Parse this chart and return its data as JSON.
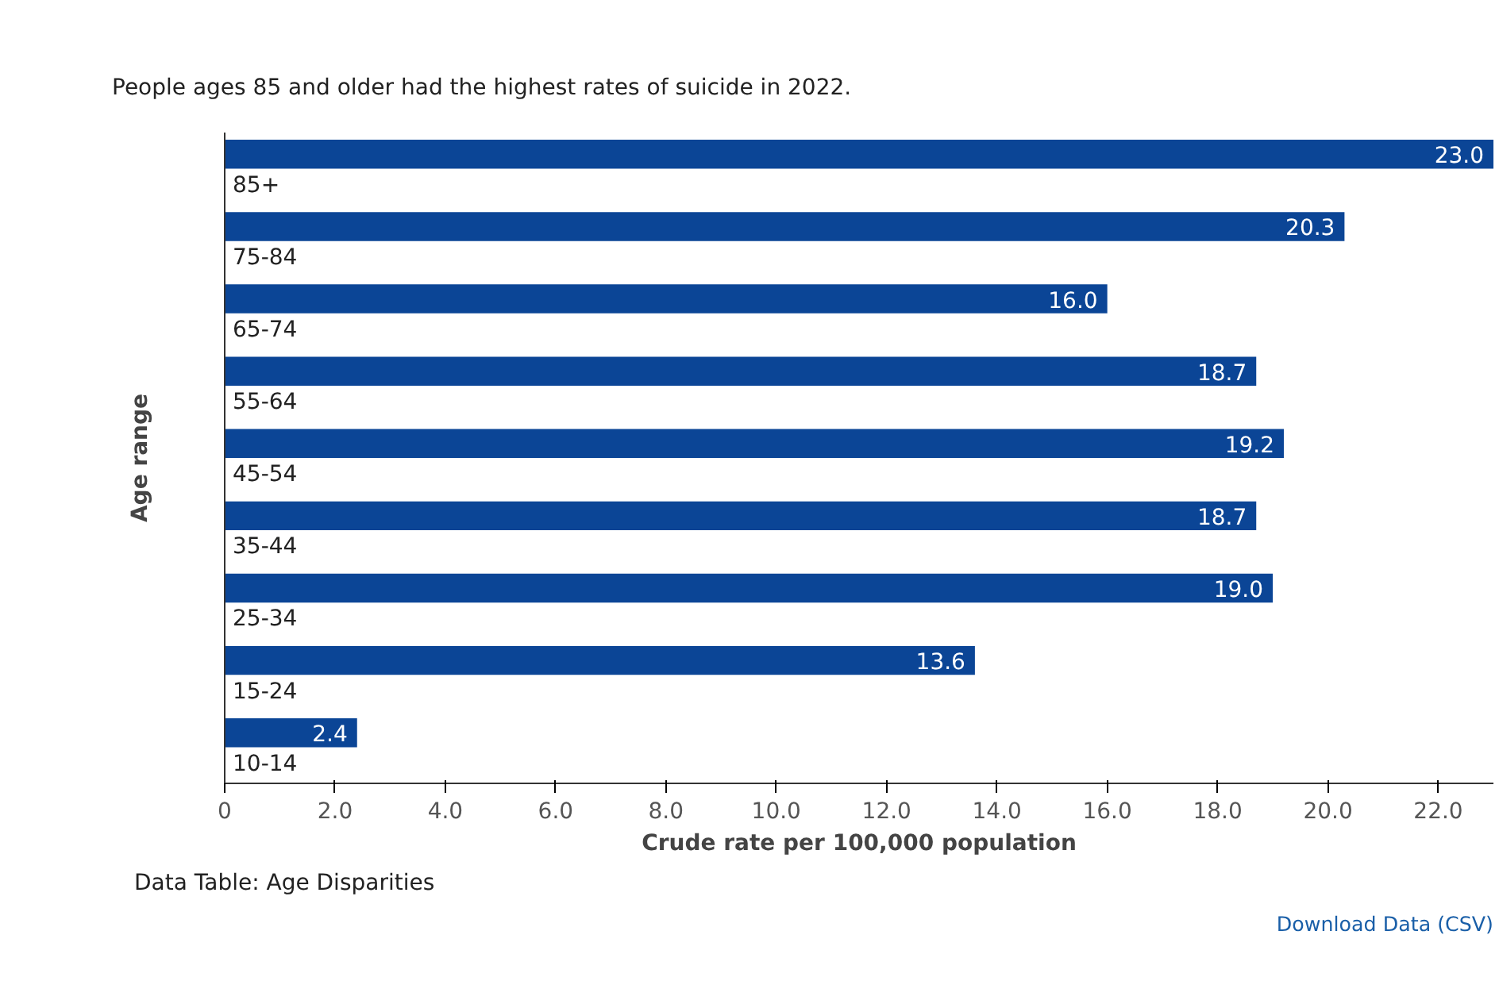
{
  "chart_data": {
    "type": "bar",
    "orientation": "horizontal",
    "title": "People ages 85 and older had the highest rates of suicide in 2022.",
    "categories": [
      "85+",
      "75-84",
      "65-74",
      "55-64",
      "45-54",
      "35-44",
      "25-34",
      "15-24",
      "10-14"
    ],
    "values": [
      23.0,
      20.3,
      16.0,
      18.7,
      19.2,
      18.7,
      19.0,
      13.6,
      2.4
    ],
    "color": "#0b4596",
    "xlabel": "Crude rate per 100,000 population",
    "ylabel": "Age range",
    "xlim": [
      0,
      23
    ],
    "xticks": [
      0,
      {
        "value": 2,
        "label": "2.0"
      },
      {
        "value": 4,
        "label": "4.0"
      },
      {
        "value": 6,
        "label": "6.0"
      },
      {
        "value": 8,
        "label": "8.0"
      },
      {
        "value": 10,
        "label": "10.0"
      },
      {
        "value": 12,
        "label": "12.0"
      },
      {
        "value": 14,
        "label": "14.0"
      },
      {
        "value": 16,
        "label": "16.0"
      },
      {
        "value": 18,
        "label": "18.0"
      },
      {
        "value": 20,
        "label": "20.0"
      },
      {
        "value": 22,
        "label": "22.0"
      }
    ],
    "value_labels": [
      "23.0",
      "20.3",
      "16.0",
      "18.7",
      "19.2",
      "18.7",
      "19.0",
      "13.6",
      "2.4"
    ],
    "grid": false,
    "annotations": [
      "Data Table: Age Disparities",
      "Download Data (CSV)"
    ]
  }
}
